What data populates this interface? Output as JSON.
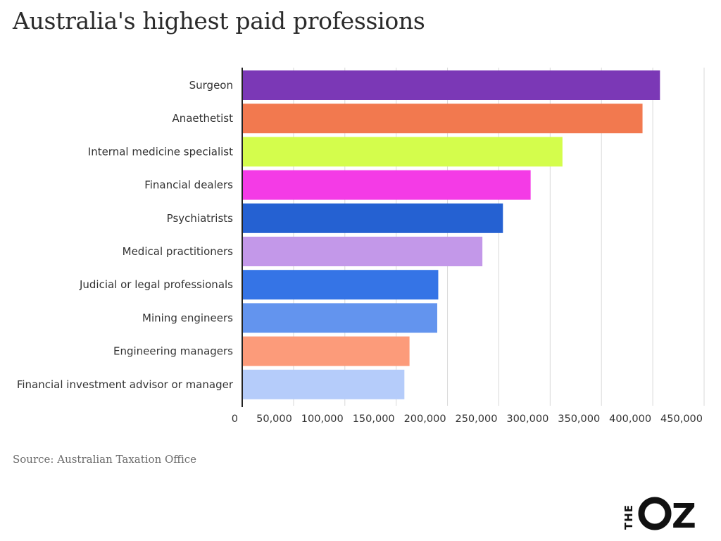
{
  "title": "Australia's highest paid professions",
  "source": "Source: Australian Taxation Office",
  "logo_text": "THE OZ",
  "chart_data": {
    "type": "bar",
    "orientation": "horizontal",
    "title": "Australia's highest paid professions",
    "xlabel": "",
    "ylabel": "",
    "xlim": [
      0,
      450000
    ],
    "xticks": [
      0,
      50000,
      100000,
      150000,
      200000,
      250000,
      300000,
      350000,
      400000,
      450000
    ],
    "xtick_labels": [
      "0",
      "50,000",
      "100,000",
      "150,000",
      "200,000",
      "250,000",
      "300,000",
      "350,000",
      "400,000",
      "450,000"
    ],
    "grid": true,
    "categories": [
      "Surgeon",
      "Anaethetist",
      "Internal medicine specialist",
      "Financial dealers",
      "Psychiatrists",
      "Medical practitioners",
      "Judicial or legal professionals",
      "Mining engineers",
      "Engineering managers",
      "Financial investment advisor or manager"
    ],
    "values": [
      407000,
      390000,
      312000,
      281000,
      254000,
      234000,
      191000,
      190000,
      163000,
      158000
    ],
    "colors": [
      "#7b38b6",
      "#f2794f",
      "#d4fd4c",
      "#f43be6",
      "#2561d2",
      "#c398e9",
      "#3574e6",
      "#6394ee",
      "#fc9b7a",
      "#b5ccfa"
    ]
  }
}
